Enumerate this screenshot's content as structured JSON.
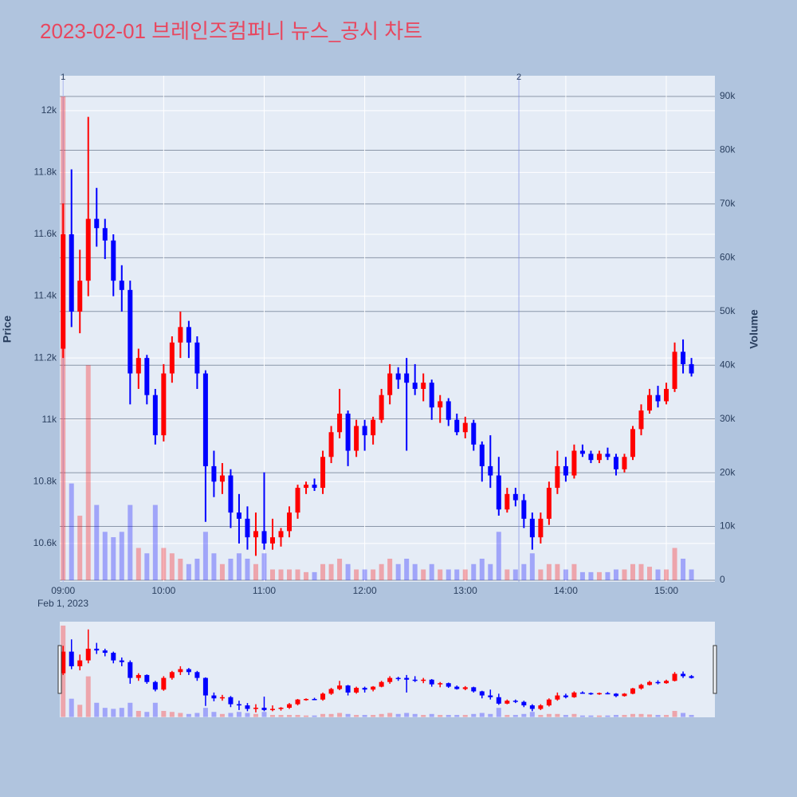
{
  "chart_data": {
    "type": "candlestick",
    "title": "2023-02-01 브레인즈컴퍼니 뉴스_공시 차트",
    "ylabel": "Price",
    "y2label": "Volume",
    "x_date_label": "Feb 1, 2023",
    "up_color": "#ff0000",
    "down_color": "#0000ff",
    "x": [
      "09:00",
      "09:05",
      "09:10",
      "09:15",
      "09:20",
      "09:25",
      "09:30",
      "09:35",
      "09:40",
      "09:45",
      "09:50",
      "09:55",
      "10:00",
      "10:05",
      "10:10",
      "10:15",
      "10:20",
      "10:25",
      "10:30",
      "10:35",
      "10:40",
      "10:45",
      "10:50",
      "10:55",
      "11:00",
      "11:05",
      "11:10",
      "11:15",
      "11:20",
      "11:25",
      "11:30",
      "11:35",
      "11:40",
      "11:45",
      "11:50",
      "11:55",
      "12:00",
      "12:05",
      "12:10",
      "12:15",
      "12:20",
      "12:25",
      "12:30",
      "12:35",
      "12:40",
      "12:45",
      "12:50",
      "12:55",
      "13:00",
      "13:05",
      "13:10",
      "13:15",
      "13:20",
      "13:25",
      "13:30",
      "13:35",
      "13:40",
      "13:45",
      "13:50",
      "13:55",
      "14:00",
      "14:05",
      "14:10",
      "14:15",
      "14:20",
      "14:25",
      "14:30",
      "14:35",
      "14:40",
      "14:45",
      "14:50",
      "14:55",
      "15:00",
      "15:05",
      "15:10",
      "15:15"
    ],
    "open": [
      11230,
      11600,
      11350,
      11450,
      11650,
      11620,
      11580,
      11450,
      11420,
      11150,
      11200,
      11080,
      10950,
      11150,
      11250,
      11300,
      11250,
      11150,
      10850,
      10800,
      10820,
      10700,
      10680,
      10620,
      10640,
      10600,
      10620,
      10640,
      10700,
      10780,
      10790,
      10780,
      10880,
      10960,
      11020,
      10900,
      10980,
      10950,
      11000,
      11080,
      11150,
      11150,
      11120,
      11100,
      11120,
      11040,
      11060,
      11000,
      10960,
      10990,
      10920,
      10850,
      10820,
      10710,
      10760,
      10740,
      10680,
      10620,
      10680,
      10780,
      10850,
      10820,
      10900,
      10890,
      10870,
      10890,
      10880,
      10840,
      10880,
      10970,
      11030,
      11080,
      11060,
      11100,
      11220,
      11180
    ],
    "high": [
      11700,
      11810,
      11550,
      11980,
      11750,
      11650,
      11600,
      11500,
      11450,
      11230,
      11210,
      11100,
      11180,
      11270,
      11350,
      11320,
      11270,
      11160,
      10900,
      10860,
      10840,
      10760,
      10720,
      10700,
      10830,
      10680,
      10650,
      10720,
      10790,
      10800,
      10810,
      10900,
      10980,
      11100,
      11030,
      11000,
      11000,
      11010,
      11100,
      11180,
      11170,
      11200,
      11180,
      11150,
      11130,
      11080,
      11070,
      11020,
      11010,
      11000,
      10930,
      10950,
      10880,
      10780,
      10780,
      10760,
      10700,
      10700,
      10800,
      10900,
      10880,
      10920,
      10920,
      10900,
      10900,
      10910,
      10890,
      10890,
      10980,
      11050,
      11100,
      11110,
      11120,
      11250,
      11260,
      11200
    ],
    "low": [
      11200,
      11300,
      11280,
      11400,
      11560,
      11520,
      11400,
      11350,
      11050,
      11100,
      11050,
      10920,
      10930,
      11120,
      11200,
      11200,
      11100,
      10670,
      10750,
      10760,
      10650,
      10600,
      10580,
      10560,
      10580,
      10580,
      10590,
      10620,
      10680,
      10760,
      10770,
      10760,
      10860,
      10940,
      10850,
      10880,
      10900,
      10920,
      10990,
      11050,
      11100,
      10900,
      11080,
      11060,
      11000,
      10990,
      10980,
      10950,
      10940,
      10900,
      10800,
      10780,
      10690,
      10700,
      10720,
      10650,
      10580,
      10600,
      10660,
      10760,
      10800,
      10810,
      10880,
      10860,
      10860,
      10870,
      10820,
      10830,
      10870,
      10950,
      11020,
      11040,
      11050,
      11090,
      11150,
      11140
    ],
    "close": [
      11600,
      11350,
      11450,
      11650,
      11620,
      11580,
      11450,
      11420,
      11150,
      11200,
      11080,
      10950,
      11150,
      11250,
      11300,
      11250,
      11150,
      10850,
      10800,
      10820,
      10700,
      10680,
      10620,
      10640,
      10600,
      10620,
      10640,
      10700,
      10780,
      10790,
      10780,
      10880,
      10960,
      11020,
      10900,
      10980,
      10950,
      11000,
      11080,
      11150,
      11130,
      11120,
      11100,
      11120,
      11040,
      11060,
      11000,
      10960,
      10990,
      10920,
      10850,
      10820,
      10710,
      10760,
      10740,
      10680,
      10620,
      10680,
      10780,
      10850,
      10820,
      10900,
      10890,
      10870,
      10890,
      10880,
      10840,
      10880,
      10970,
      11030,
      11080,
      11060,
      11100,
      11220,
      11180,
      11150
    ],
    "volume": [
      90000,
      18000,
      12000,
      40000,
      14000,
      9000,
      8000,
      9000,
      14000,
      6000,
      5000,
      14000,
      6000,
      5000,
      4000,
      3000,
      4000,
      9000,
      5000,
      3000,
      4000,
      5000,
      4000,
      3000,
      5000,
      2000,
      2000,
      2000,
      2000,
      1500,
      1500,
      3000,
      3000,
      4000,
      3000,
      2000,
      2000,
      2000,
      3000,
      4000,
      3000,
      4000,
      3000,
      2000,
      3000,
      2000,
      2000,
      2000,
      2000,
      3000,
      4000,
      3000,
      9000,
      2000,
      2000,
      3000,
      5000,
      2000,
      3000,
      3000,
      2000,
      3000,
      1500,
      1500,
      1500,
      1500,
      2000,
      2000,
      3000,
      3000,
      2500,
      2000,
      2000,
      6000,
      4000,
      2000
    ],
    "xlim": [
      "08:58",
      "15:29"
    ],
    "xticks": [
      "09:00",
      "10:00",
      "11:00",
      "12:00",
      "13:00",
      "14:00",
      "15:00"
    ],
    "ylim": [
      10476,
      12113
    ],
    "yticks": [
      {
        "value": 10600,
        "label": "10.6k"
      },
      {
        "value": 10800,
        "label": "10.8k"
      },
      {
        "value": 11000,
        "label": "11k"
      },
      {
        "value": 11200,
        "label": "11.2k"
      },
      {
        "value": 11400,
        "label": "11.4k"
      },
      {
        "value": 11600,
        "label": "11.6k"
      },
      {
        "value": 11800,
        "label": "11.8k"
      },
      {
        "value": 12000,
        "label": "12k"
      }
    ],
    "y2lim": [
      -300,
      93860
    ],
    "y2ticks": [
      0,
      {
        "value": 10000,
        "label": "10k"
      },
      {
        "value": 20000,
        "label": "20k"
      },
      {
        "value": 30000,
        "label": "30k"
      },
      {
        "value": 40000,
        "label": "40k"
      },
      {
        "value": 50000,
        "label": "50k"
      },
      {
        "value": 60000,
        "label": "60k"
      },
      {
        "value": 70000,
        "label": "70k"
      },
      {
        "value": 80000,
        "label": "80k"
      },
      {
        "value": 90000,
        "label": "90k"
      }
    ],
    "annotations": [
      {
        "x": "09:00",
        "label": "1"
      },
      {
        "x": "13:32",
        "label": "2"
      }
    ]
  }
}
